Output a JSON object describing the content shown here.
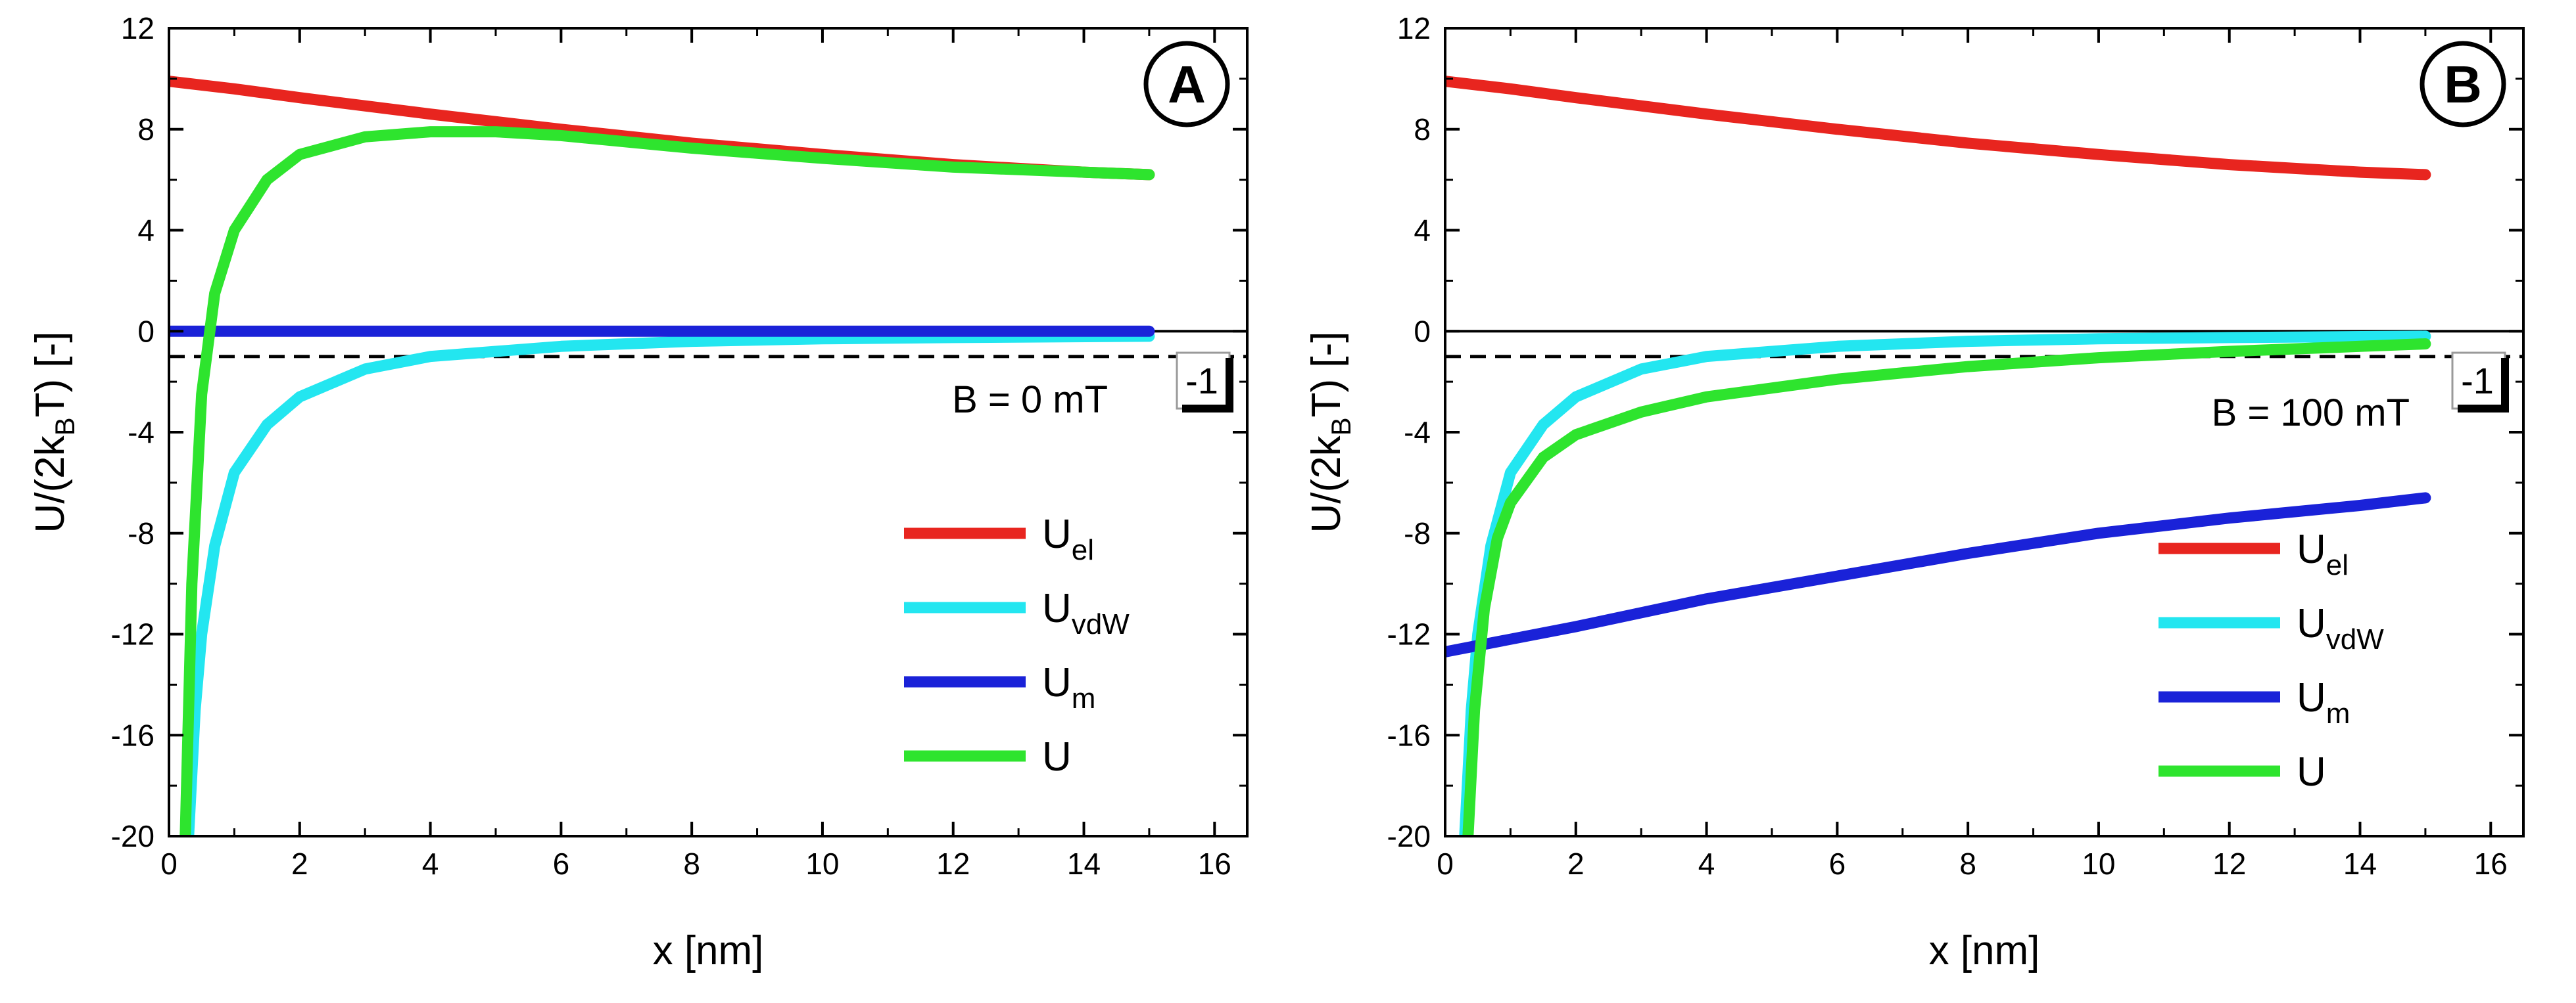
{
  "chart_data": [
    {
      "type": "line",
      "panel_label": "A",
      "xlabel": "x [nm]",
      "ylabel_main": "U/(2k",
      "ylabel_sub": "B",
      "ylabel_end": "T) [-]",
      "xlim": [
        0,
        16.5
      ],
      "ylim": [
        -20,
        12
      ],
      "x_ticks": [
        0,
        2,
        4,
        6,
        8,
        10,
        12,
        14,
        16
      ],
      "x_tick_labels": [
        "0",
        "2",
        "4",
        "6",
        "8",
        "10",
        "12",
        "14",
        "16"
      ],
      "y_ticks": [
        12,
        8,
        4,
        0,
        -4,
        -8,
        -12,
        -16,
        -20
      ],
      "y_tick_labels": [
        "12",
        "8",
        "4",
        "0",
        "-4",
        "-8",
        "-12",
        "-16",
        "-20"
      ],
      "reference_line": {
        "y": -1,
        "label": "-1"
      },
      "zero_line": {
        "y": 0
      },
      "annotation": "B = 0 mT",
      "series": [
        {
          "name": "U",
          "sub": "el",
          "color": "#e8251f",
          "x": [
            0,
            1,
            2,
            4,
            6,
            8,
            10,
            12,
            14,
            15
          ],
          "y": [
            9.9,
            9.6,
            9.25,
            8.6,
            8.0,
            7.45,
            7.0,
            6.6,
            6.3,
            6.2
          ]
        },
        {
          "name": "U",
          "sub": "vdW",
          "color": "#23e6f0",
          "x": [
            0.3,
            0.4,
            0.5,
            0.7,
            1,
            1.5,
            2,
            3,
            4,
            6,
            8,
            10,
            12,
            15
          ],
          "y": [
            -20,
            -15,
            -12,
            -8.5,
            -5.6,
            -3.7,
            -2.6,
            -1.5,
            -1.0,
            -0.6,
            -0.4,
            -0.3,
            -0.25,
            -0.2
          ]
        },
        {
          "name": "U",
          "sub": "m",
          "color": "#1a22d8",
          "x": [
            0,
            15
          ],
          "y": [
            0,
            0
          ]
        },
        {
          "name": "U",
          "sub": "",
          "color": "#2ee42e",
          "x": [
            0.25,
            0.35,
            0.5,
            0.7,
            1,
            1.5,
            2,
            3,
            4,
            5,
            6,
            8,
            10,
            12,
            14,
            15
          ],
          "y": [
            -20,
            -10,
            -2.5,
            1.5,
            4.0,
            6.0,
            7.0,
            7.7,
            7.9,
            7.9,
            7.75,
            7.25,
            6.85,
            6.5,
            6.3,
            6.2
          ]
        }
      ]
    },
    {
      "type": "line",
      "panel_label": "B",
      "xlabel": "x [nm]",
      "ylabel_main": "U/(2k",
      "ylabel_sub": "B",
      "ylabel_end": "T) [-]",
      "xlim": [
        0,
        16.5
      ],
      "ylim": [
        -20,
        12
      ],
      "x_ticks": [
        0,
        2,
        4,
        6,
        8,
        10,
        12,
        14,
        16
      ],
      "x_tick_labels": [
        "0",
        "2",
        "4",
        "6",
        "8",
        "10",
        "12",
        "14",
        "16"
      ],
      "y_ticks": [
        12,
        8,
        4,
        0,
        -4,
        -8,
        -12,
        -16,
        -20
      ],
      "y_tick_labels": [
        "12",
        "8",
        "4",
        "0",
        "-4",
        "-8",
        "-12",
        "-16",
        "-20"
      ],
      "reference_line": {
        "y": -1,
        "label": "-1"
      },
      "zero_line": {
        "y": 0
      },
      "annotation": "B = 100 mT",
      "series": [
        {
          "name": "U",
          "sub": "el",
          "color": "#e8251f",
          "x": [
            0,
            1,
            2,
            4,
            6,
            8,
            10,
            12,
            14,
            15
          ],
          "y": [
            9.9,
            9.6,
            9.25,
            8.6,
            8.0,
            7.45,
            7.0,
            6.6,
            6.3,
            6.2
          ]
        },
        {
          "name": "U",
          "sub": "vdW",
          "color": "#23e6f0",
          "x": [
            0.3,
            0.4,
            0.5,
            0.7,
            1,
            1.5,
            2,
            3,
            4,
            6,
            8,
            10,
            12,
            15
          ],
          "y": [
            -20,
            -15,
            -12,
            -8.5,
            -5.6,
            -3.7,
            -2.6,
            -1.5,
            -1.0,
            -0.6,
            -0.4,
            -0.3,
            -0.25,
            -0.2
          ]
        },
        {
          "name": "U",
          "sub": "m",
          "color": "#1a22d8",
          "x": [
            0,
            1,
            2,
            4,
            6,
            8,
            10,
            12,
            14,
            15
          ],
          "y": [
            -12.7,
            -12.2,
            -11.7,
            -10.6,
            -9.7,
            -8.8,
            -8.0,
            -7.4,
            -6.9,
            -6.6
          ]
        },
        {
          "name": "U",
          "sub": "",
          "color": "#2ee42e",
          "x": [
            0.35,
            0.45,
            0.6,
            0.8,
            1,
            1.5,
            2,
            3,
            4,
            6,
            8,
            10,
            12,
            14,
            15
          ],
          "y": [
            -20,
            -15,
            -11,
            -8.2,
            -6.8,
            -5.0,
            -4.1,
            -3.2,
            -2.6,
            -1.9,
            -1.4,
            -1.05,
            -0.8,
            -0.6,
            -0.5
          ]
        }
      ]
    }
  ]
}
